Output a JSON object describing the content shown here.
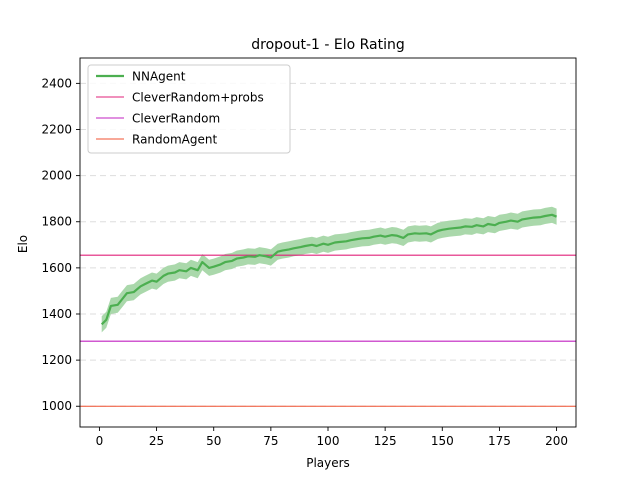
{
  "chart_data": {
    "type": "line",
    "title": "dropout-1 - Elo Rating",
    "xlabel": "Players",
    "ylabel": "Elo",
    "xlim": [
      -8.5,
      208.5
    ],
    "ylim": [
      910,
      2510
    ],
    "xticks": [
      0,
      25,
      50,
      75,
      100,
      125,
      150,
      175,
      200
    ],
    "yticks": [
      1000,
      1200,
      1400,
      1600,
      1800,
      2000,
      2200,
      2400
    ],
    "grid": "horizontal-dashed",
    "legend_position": "top-left",
    "series": [
      {
        "name": "NNAgent",
        "color": "#4caf50",
        "band_color": "#a5d6a7",
        "x": [
          1,
          3,
          5,
          8,
          10,
          12,
          15,
          18,
          20,
          23,
          25,
          28,
          30,
          33,
          35,
          38,
          40,
          43,
          45,
          48,
          50,
          53,
          55,
          58,
          60,
          63,
          65,
          68,
          70,
          73,
          75,
          78,
          80,
          83,
          85,
          88,
          90,
          93,
          95,
          98,
          100,
          103,
          105,
          108,
          110,
          113,
          115,
          118,
          120,
          123,
          125,
          128,
          130,
          133,
          135,
          138,
          140,
          143,
          145,
          148,
          150,
          153,
          155,
          158,
          160,
          163,
          165,
          168,
          170,
          173,
          175,
          178,
          180,
          183,
          185,
          188,
          190,
          193,
          195,
          198,
          200
        ],
        "values": [
          1355,
          1375,
          1435,
          1440,
          1465,
          1490,
          1495,
          1520,
          1530,
          1545,
          1540,
          1565,
          1575,
          1580,
          1590,
          1585,
          1600,
          1590,
          1625,
          1600,
          1605,
          1615,
          1625,
          1630,
          1640,
          1645,
          1650,
          1648,
          1655,
          1650,
          1645,
          1670,
          1675,
          1680,
          1685,
          1690,
          1695,
          1700,
          1695,
          1705,
          1700,
          1710,
          1712,
          1715,
          1720,
          1725,
          1728,
          1730,
          1735,
          1740,
          1735,
          1742,
          1740,
          1730,
          1745,
          1750,
          1748,
          1750,
          1745,
          1760,
          1765,
          1770,
          1772,
          1775,
          1780,
          1778,
          1785,
          1780,
          1790,
          1785,
          1795,
          1800,
          1805,
          1800,
          1810,
          1815,
          1818,
          1820,
          1825,
          1830,
          1822
        ],
        "band_halfwidth": 35
      },
      {
        "name": "CleverRandom+probs",
        "color": "#e0207a",
        "constant": 1655
      },
      {
        "name": "CleverRandom",
        "color": "#c020c0",
        "constant": 1282
      },
      {
        "name": "RandomAgent",
        "color": "#f05030",
        "constant": 1000
      }
    ]
  }
}
